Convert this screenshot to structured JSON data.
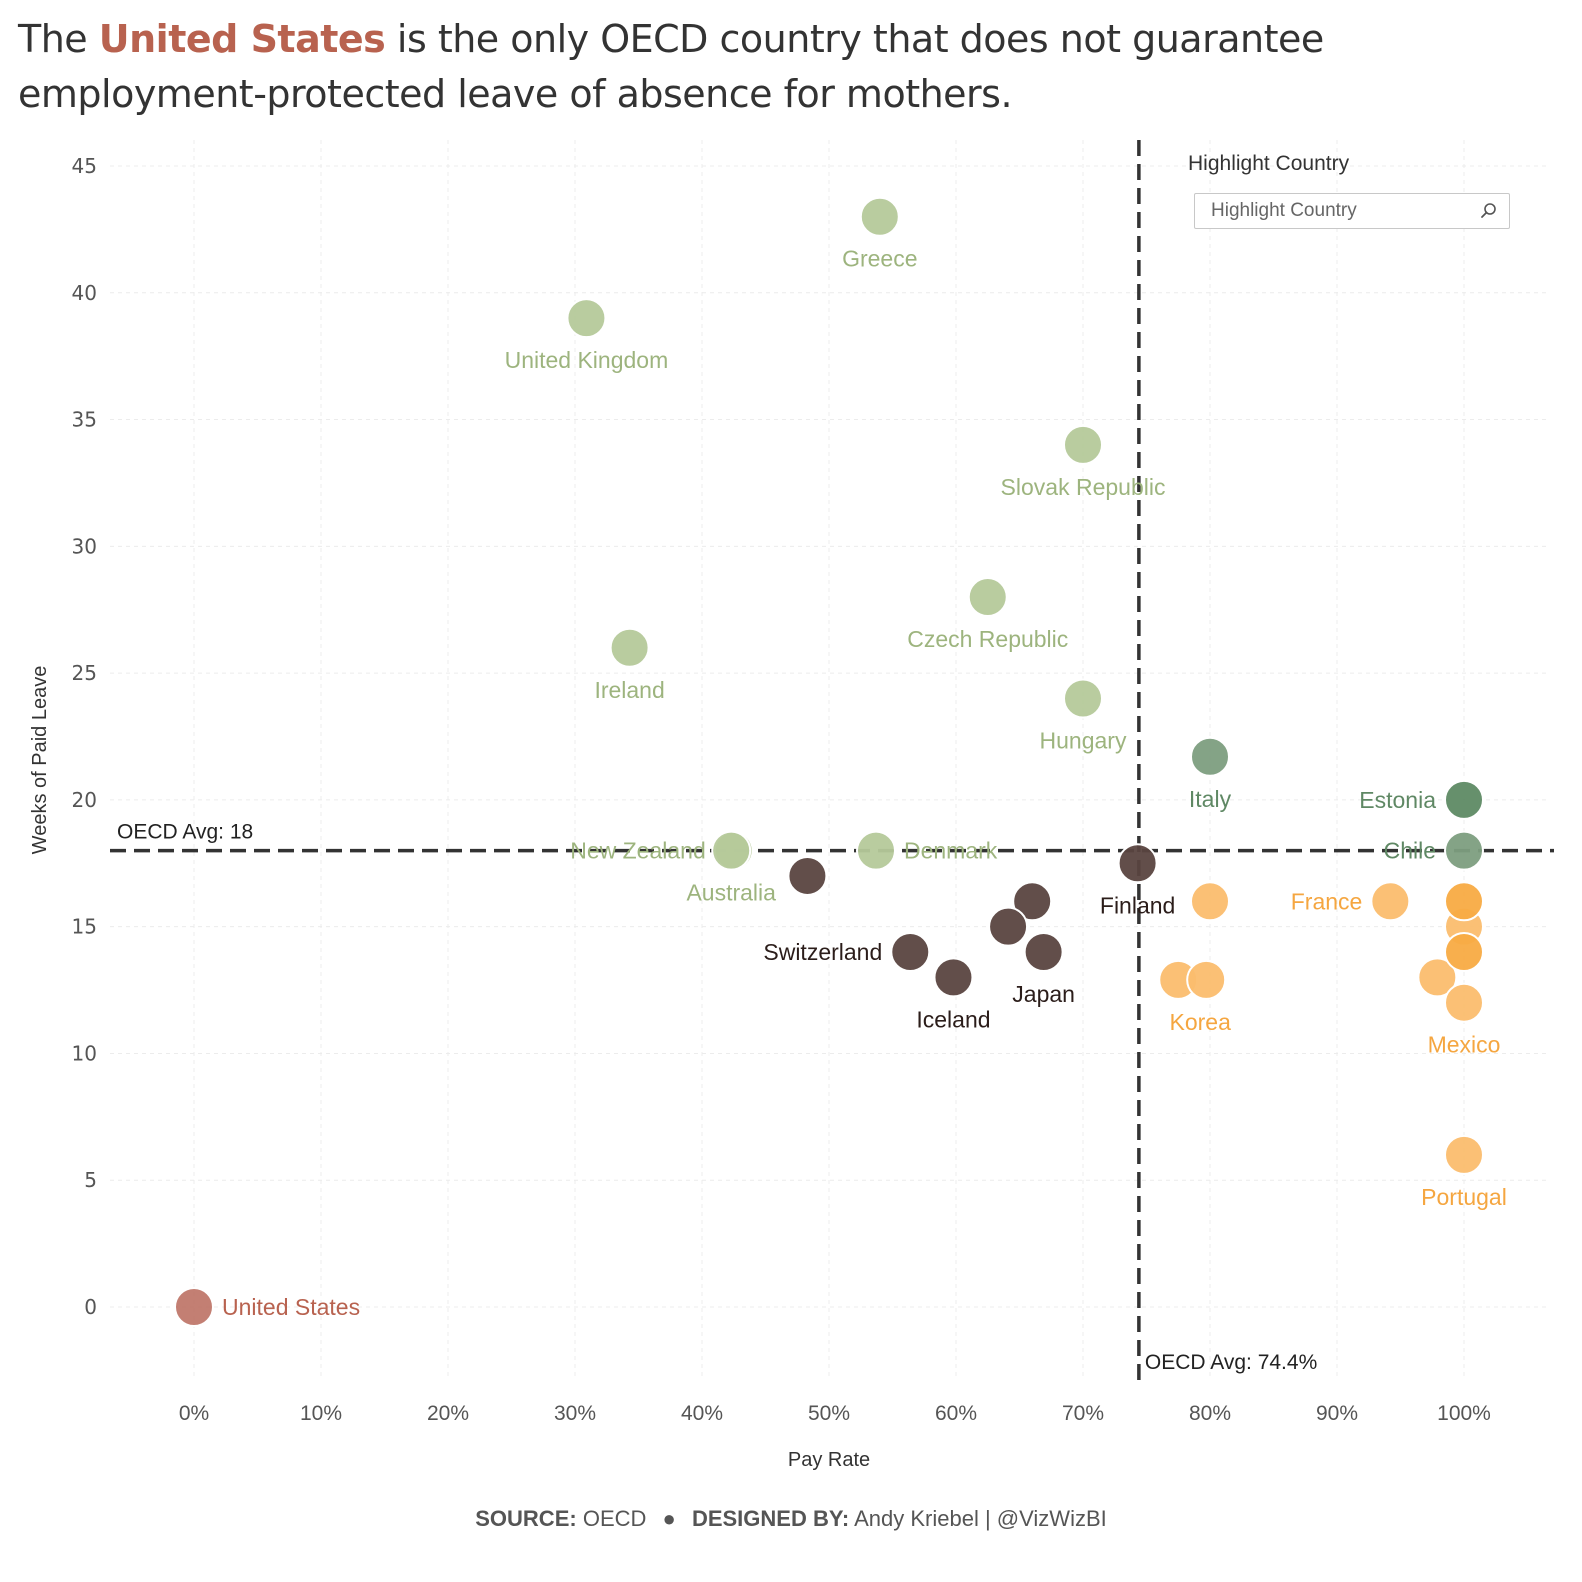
{
  "title": {
    "prefix": "The ",
    "highlight": "United States",
    "suffix": " is the only OECD country that does not guarantee employment-protected leave of absence for mothers.",
    "highlight_color": "#b8624f"
  },
  "filter": {
    "title": "Highlight Country",
    "placeholder": "Highlight Country",
    "value": "",
    "icon": "search-icon"
  },
  "footer": {
    "source_label": "SOURCE:",
    "source_value": "OECD",
    "separator": "●",
    "designed_label": "DESIGNED BY:",
    "designed_value": "Andy Kriebel | @VizWizBI"
  },
  "colors": {
    "us": "#c0786c",
    "us_label": "#b8624f",
    "high_weeks_low_pay": "#b5c99a",
    "high_weeks_low_pay_label": "#9db47e",
    "high_weeks_high_pay": "#7d9e80",
    "high_weeks_high_pay_label": "#5f8864",
    "estonia": "#5e8a64",
    "low_weeks_low_pay": "#5a4440",
    "low_weeks_low_pay_label": "#2b1d1a",
    "low_weeks_high_pay": "#fbbd6e",
    "low_weeks_high_pay_dark": "#f8ab43",
    "low_weeks_high_pay_label": "#f5a640",
    "avg_line": "#333333"
  },
  "chart_data": {
    "type": "scatter",
    "title": "The United States is the only OECD country that does not guarantee employment-protected leave of absence for mothers.",
    "xlabel": "Pay Rate",
    "ylabel": "Weeks of Paid Leave",
    "xlim": [
      -0.06,
      1.06
    ],
    "ylim": [
      -2.9,
      46
    ],
    "xticks": [
      0,
      0.1,
      0.2,
      0.3,
      0.4,
      0.5,
      0.6,
      0.7,
      0.8,
      0.9,
      1.0
    ],
    "xtick_labels": [
      "0%",
      "10%",
      "20%",
      "30%",
      "40%",
      "50%",
      "60%",
      "70%",
      "80%",
      "90%",
      "100%"
    ],
    "yticks": [
      0,
      5,
      10,
      15,
      20,
      25,
      30,
      35,
      40,
      45
    ],
    "ytick_labels": [
      "0",
      "5",
      "10",
      "15",
      "20",
      "25",
      "30",
      "35",
      "40",
      "45"
    ],
    "grid": true,
    "reference_lines": [
      {
        "axis": "y",
        "value": 18,
        "label": "OECD Avg: 18"
      },
      {
        "axis": "x",
        "value": 0.744,
        "label": "OECD Avg: 74.4%"
      }
    ],
    "points": [
      {
        "label": "Greece",
        "x": 0.54,
        "y": 43,
        "group": "hwlp",
        "label_pos": "below"
      },
      {
        "label": "United Kingdom",
        "x": 0.309,
        "y": 39,
        "group": "hwlp",
        "label_pos": "below"
      },
      {
        "label": "Slovak Republic",
        "x": 0.7,
        "y": 34,
        "group": "hwlp",
        "label_pos": "below"
      },
      {
        "label": "Czech Republic",
        "x": 0.625,
        "y": 28,
        "group": "hwlp",
        "label_pos": "below"
      },
      {
        "label": "Ireland",
        "x": 0.343,
        "y": 26,
        "group": "hwlp",
        "label_pos": "below"
      },
      {
        "label": "Hungary",
        "x": 0.7,
        "y": 24,
        "group": "hwlp",
        "label_pos": "below"
      },
      {
        "label": "New Zealand",
        "x": 0.425,
        "y": 18,
        "group": "hwlp",
        "label_pos": "left"
      },
      {
        "label": "Australia",
        "x": 0.423,
        "y": 18,
        "group": "hwlp",
        "label_pos": "below"
      },
      {
        "label": "Denmark",
        "x": 0.537,
        "y": 18,
        "group": "hwlp",
        "label_pos": "right"
      },
      {
        "label": "Italy",
        "x": 0.8,
        "y": 21.7,
        "group": "hwhp",
        "label_pos": "below"
      },
      {
        "label": "Estonia",
        "x": 1.0,
        "y": 20,
        "group": "estonia",
        "label_pos": "left"
      },
      {
        "label": "Chile",
        "x": 1.0,
        "y": 18,
        "group": "hwhp",
        "label_pos": "left"
      },
      {
        "label": "",
        "x": 0.483,
        "y": 17,
        "group": "lwlp"
      },
      {
        "label": "Finland",
        "x": 0.743,
        "y": 17.5,
        "group": "lwlp",
        "label_pos": "below"
      },
      {
        "label": "",
        "x": 0.66,
        "y": 16,
        "group": "lwlp"
      },
      {
        "label": "",
        "x": 0.641,
        "y": 15,
        "group": "lwlp"
      },
      {
        "label": "Japan",
        "x": 0.669,
        "y": 14,
        "group": "lwlp",
        "label_pos": "below"
      },
      {
        "label": "Switzerland",
        "x": 0.564,
        "y": 14,
        "group": "lwlp",
        "label_pos": "left"
      },
      {
        "label": "Iceland",
        "x": 0.598,
        "y": 13,
        "group": "lwlp",
        "label_pos": "below"
      },
      {
        "label": "",
        "x": 0.8,
        "y": 16,
        "group": "lwhp"
      },
      {
        "label": "",
        "x": 0.775,
        "y": 12.9,
        "group": "lwhp"
      },
      {
        "label": "Korea",
        "x": 0.797,
        "y": 12.9,
        "group": "lwhp",
        "label_pos": "below-left"
      },
      {
        "label": "France",
        "x": 0.942,
        "y": 16,
        "group": "lwhp",
        "label_pos": "left"
      },
      {
        "label": "",
        "x": 1.0,
        "y": 15,
        "group": "lwhp"
      },
      {
        "label": "",
        "x": 1.0,
        "y": 16,
        "group": "lwhp_dark"
      },
      {
        "label": "",
        "x": 1.0,
        "y": 14,
        "group": "lwhp_dark"
      },
      {
        "label": "",
        "x": 0.979,
        "y": 13,
        "group": "lwhp"
      },
      {
        "label": "Mexico",
        "x": 1.0,
        "y": 12,
        "group": "lwhp",
        "label_pos": "below"
      },
      {
        "label": "Portugal",
        "x": 1.0,
        "y": 6,
        "group": "lwhp",
        "label_pos": "below"
      },
      {
        "label": "United States",
        "x": 0.0,
        "y": 0,
        "group": "us",
        "label_pos": "right"
      }
    ]
  }
}
